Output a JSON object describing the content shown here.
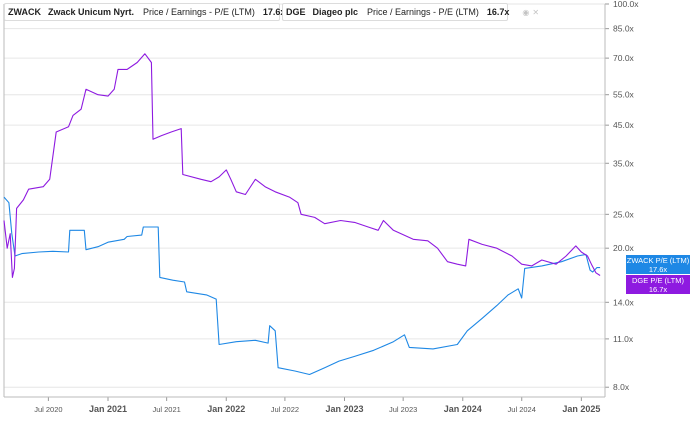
{
  "legend": [
    {
      "ticker": "ZWACK",
      "name": "Zwack Unicum Nyrt.",
      "metric": "Price / Earnings - P/E (LTM)",
      "value": "17.6x",
      "color": "#1e88e5"
    },
    {
      "ticker": "DGE",
      "name": "Diageo plc",
      "metric": "Price / Earnings - P/E (LTM)",
      "value": "16.7x",
      "color": "#8e1ae0"
    }
  ],
  "end_tags": [
    {
      "label": "ZWACK P/E (LTM)",
      "value": "17.6x"
    },
    {
      "label": "DGE P/E (LTM)",
      "value": "16.7x"
    }
  ],
  "colors": {
    "zwack": "#1e88e5",
    "dge": "#8e1ae0",
    "grid": "#e6e6e6",
    "axis_text": "#555555"
  },
  "chart_data": {
    "type": "line",
    "x_ticks": [
      "Jul 2020",
      "Jan 2021",
      "Jul 2021",
      "Jan 2022",
      "Jul 2022",
      "Jan 2023",
      "Jul 2023",
      "Jan 2024",
      "Jul 2024",
      "Jan 2025"
    ],
    "y_ticks": [
      "100.0x",
      "85.0x",
      "70.0x",
      "55.0x",
      "45.0x",
      "35.0x",
      "25.0x",
      "20.0x",
      "14.0x",
      "11.0x",
      "8.0x"
    ],
    "y_scale": "log",
    "xlim": [
      "2020-02-15",
      "2025-03-15"
    ],
    "ylim": [
      7.5,
      100
    ],
    "series": [
      {
        "name": "ZWACK",
        "points": [
          [
            "2020-02-15",
            28.0
          ],
          [
            "2020-03-01",
            27.0
          ],
          [
            "2020-03-10",
            22.0
          ],
          [
            "2020-03-20",
            19.0
          ],
          [
            "2020-04-10",
            19.3
          ],
          [
            "2020-06-01",
            19.5
          ],
          [
            "2020-07-15",
            19.6
          ],
          [
            "2020-09-01",
            19.5
          ],
          [
            "2020-09-05",
            22.5
          ],
          [
            "2020-10-20",
            22.5
          ],
          [
            "2020-10-25",
            19.8
          ],
          [
            "2020-12-01",
            20.2
          ],
          [
            "2021-01-01",
            20.8
          ],
          [
            "2021-02-20",
            21.2
          ],
          [
            "2021-03-01",
            21.6
          ],
          [
            "2021-04-15",
            21.8
          ],
          [
            "2021-04-20",
            23.0
          ],
          [
            "2021-06-05",
            23.0
          ],
          [
            "2021-06-10",
            16.5
          ],
          [
            "2021-07-20",
            16.2
          ],
          [
            "2021-08-25",
            16.0
          ],
          [
            "2021-09-01",
            15.0
          ],
          [
            "2021-11-01",
            14.7
          ],
          [
            "2021-12-01",
            14.3
          ],
          [
            "2021-12-10",
            10.6
          ],
          [
            "2022-02-01",
            10.8
          ],
          [
            "2022-04-01",
            10.9
          ],
          [
            "2022-05-10",
            10.7
          ],
          [
            "2022-05-15",
            12.0
          ],
          [
            "2022-06-01",
            11.6
          ],
          [
            "2022-06-10",
            9.1
          ],
          [
            "2022-08-01",
            8.9
          ],
          [
            "2022-09-15",
            8.7
          ],
          [
            "2022-11-01",
            9.1
          ],
          [
            "2022-12-15",
            9.5
          ],
          [
            "2023-02-01",
            9.8
          ],
          [
            "2023-04-01",
            10.2
          ],
          [
            "2023-06-01",
            10.8
          ],
          [
            "2023-07-05",
            11.3
          ],
          [
            "2023-07-20",
            10.4
          ],
          [
            "2023-10-01",
            10.3
          ],
          [
            "2023-12-15",
            10.6
          ],
          [
            "2024-01-15",
            11.6
          ],
          [
            "2024-03-01",
            12.6
          ],
          [
            "2024-04-15",
            13.7
          ],
          [
            "2024-05-20",
            14.7
          ],
          [
            "2024-06-20",
            15.3
          ],
          [
            "2024-07-01",
            14.4
          ],
          [
            "2024-07-10",
            17.5
          ],
          [
            "2024-09-01",
            17.8
          ],
          [
            "2024-11-01",
            18.3
          ],
          [
            "2024-12-20",
            19.0
          ],
          [
            "2025-01-15",
            19.2
          ],
          [
            "2025-01-28",
            17.3
          ],
          [
            "2025-02-05",
            17.1
          ],
          [
            "2025-02-18",
            17.6
          ],
          [
            "2025-02-28",
            17.6
          ]
        ]
      },
      {
        "name": "DGE",
        "points": [
          [
            "2020-02-15",
            24.0
          ],
          [
            "2020-02-25",
            20.0
          ],
          [
            "2020-03-05",
            22.0
          ],
          [
            "2020-03-12",
            16.5
          ],
          [
            "2020-03-18",
            17.5
          ],
          [
            "2020-03-25",
            26.0
          ],
          [
            "2020-04-15",
            27.5
          ],
          [
            "2020-05-01",
            29.5
          ],
          [
            "2020-06-15",
            30.0
          ],
          [
            "2020-07-05",
            31.5
          ],
          [
            "2020-07-25",
            43.0
          ],
          [
            "2020-09-01",
            44.5
          ],
          [
            "2020-09-15",
            48.0
          ],
          [
            "2020-10-10",
            50.0
          ],
          [
            "2020-10-25",
            57.0
          ],
          [
            "2020-12-01",
            55.0
          ],
          [
            "2021-01-01",
            54.5
          ],
          [
            "2021-01-20",
            57.0
          ],
          [
            "2021-02-01",
            65.0
          ],
          [
            "2021-03-01",
            65.0
          ],
          [
            "2021-04-01",
            68.0
          ],
          [
            "2021-04-25",
            72.0
          ],
          [
            "2021-05-15",
            68.0
          ],
          [
            "2021-05-20",
            41.0
          ],
          [
            "2021-06-15",
            42.0
          ],
          [
            "2021-07-15",
            43.0
          ],
          [
            "2021-08-15",
            44.0
          ],
          [
            "2021-08-20",
            32.5
          ],
          [
            "2021-10-15",
            31.5
          ],
          [
            "2021-11-15",
            31.0
          ],
          [
            "2021-12-10",
            32.0
          ],
          [
            "2022-01-01",
            33.5
          ],
          [
            "2022-01-15",
            31.5
          ],
          [
            "2022-02-01",
            29.0
          ],
          [
            "2022-03-01",
            28.5
          ],
          [
            "2022-04-01",
            31.5
          ],
          [
            "2022-05-01",
            30.0
          ],
          [
            "2022-06-01",
            29.0
          ],
          [
            "2022-07-15",
            28.0
          ],
          [
            "2022-08-10",
            27.0
          ],
          [
            "2022-08-20",
            25.0
          ],
          [
            "2022-10-01",
            24.5
          ],
          [
            "2022-11-01",
            23.5
          ],
          [
            "2022-12-20",
            24.0
          ],
          [
            "2023-02-01",
            23.7
          ],
          [
            "2023-03-15",
            23.0
          ],
          [
            "2023-04-15",
            22.5
          ],
          [
            "2023-05-01",
            24.0
          ],
          [
            "2023-06-01",
            22.5
          ],
          [
            "2023-08-01",
            21.2
          ],
          [
            "2023-09-15",
            21.0
          ],
          [
            "2023-10-15",
            20.0
          ],
          [
            "2023-11-15",
            18.3
          ],
          [
            "2023-12-15",
            18.0
          ],
          [
            "2024-01-10",
            17.8
          ],
          [
            "2024-01-20",
            21.2
          ],
          [
            "2024-03-01",
            20.5
          ],
          [
            "2024-04-15",
            20.0
          ],
          [
            "2024-06-01",
            19.0
          ],
          [
            "2024-07-01",
            18.0
          ],
          [
            "2024-08-01",
            17.8
          ],
          [
            "2024-09-01",
            18.5
          ],
          [
            "2024-10-15",
            18.0
          ],
          [
            "2024-11-15",
            19.0
          ],
          [
            "2024-12-15",
            20.3
          ],
          [
            "2025-01-01",
            19.5
          ],
          [
            "2025-01-20",
            19.0
          ],
          [
            "2025-02-01",
            18.0
          ],
          [
            "2025-02-15",
            17.0
          ],
          [
            "2025-02-28",
            16.7
          ]
        ]
      }
    ]
  }
}
